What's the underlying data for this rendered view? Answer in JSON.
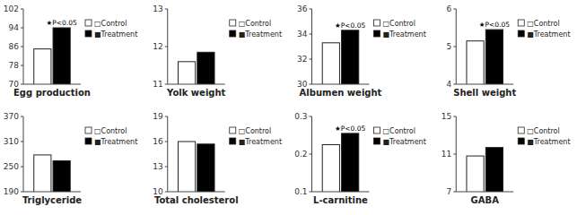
{
  "chart_data": [
    {
      "type": "bar",
      "x_label": "Egg production",
      "categories": [
        null
      ],
      "series": [
        {
          "name": "□Control",
          "color": "white",
          "values": [
            85
          ]
        },
        {
          "name": "■Treatment",
          "color": "black",
          "values": [
            94
          ],
          "annotation": "★P<0.05"
        }
      ],
      "ylim": [
        70,
        102
      ],
      "yticks": [
        70,
        78,
        86,
        94,
        102
      ],
      "grid": false,
      "legend": "right"
    },
    {
      "type": "bar",
      "x_label": "Yolk weight",
      "categories": [
        null
      ],
      "series": [
        {
          "name": "□Control",
          "color": "white",
          "values": [
            11.6
          ]
        },
        {
          "name": "■Treatment",
          "color": "black",
          "values": [
            11.85
          ]
        }
      ],
      "ylim": [
        11,
        13
      ],
      "yticks": [
        11,
        12,
        13
      ],
      "grid": false,
      "legend": "right"
    },
    {
      "type": "bar",
      "x_label": "Albumen weight",
      "categories": [
        null
      ],
      "series": [
        {
          "name": "□Control",
          "color": "white",
          "values": [
            33.3
          ]
        },
        {
          "name": "■Treatment",
          "color": "black",
          "values": [
            34.3
          ],
          "annotation": "★P<0.05"
        }
      ],
      "ylim": [
        30,
        36
      ],
      "yticks": [
        30,
        32,
        34,
        36
      ],
      "grid": false,
      "legend": "right"
    },
    {
      "type": "bar",
      "x_label": "Shell weight",
      "categories": [
        null
      ],
      "series": [
        {
          "name": "□Control",
          "color": "white",
          "values": [
            5.15
          ]
        },
        {
          "name": "■Treatment",
          "color": "black",
          "values": [
            5.45
          ],
          "annotation": "★P<0.05"
        }
      ],
      "ylim": [
        4,
        6
      ],
      "yticks": [
        4,
        5,
        6
      ],
      "grid": false,
      "legend": "right"
    },
    {
      "type": "bar",
      "x_label": "Triglyceride",
      "categories": [
        null
      ],
      "series": [
        {
          "name": "□Control",
          "color": "white",
          "values": [
            278
          ]
        },
        {
          "name": "■Treatment",
          "color": "black",
          "values": [
            264
          ]
        }
      ],
      "ylim": [
        190,
        370
      ],
      "yticks": [
        190,
        250,
        310,
        370
      ],
      "grid": false,
      "legend": "right"
    },
    {
      "type": "bar",
      "x_label": "Total cholesterol",
      "categories": [
        null
      ],
      "series": [
        {
          "name": "□Control",
          "color": "white",
          "values": [
            16.0
          ]
        },
        {
          "name": "■Treatment",
          "color": "black",
          "values": [
            15.7
          ]
        }
      ],
      "ylim": [
        10,
        19
      ],
      "yticks": [
        10,
        13,
        16,
        19
      ],
      "grid": false,
      "legend": "right"
    },
    {
      "type": "bar",
      "x_label": "L-carnitine",
      "categories": [
        null
      ],
      "series": [
        {
          "name": "□Control",
          "color": "white",
          "values": [
            0.225
          ]
        },
        {
          "name": "■Treatment",
          "color": "black",
          "values": [
            0.255
          ],
          "annotation": "★P<0.05"
        }
      ],
      "ylim": [
        0.1,
        0.3
      ],
      "yticks": [
        0.1,
        0.2,
        0.3
      ],
      "grid": false,
      "legend": "right"
    },
    {
      "type": "bar",
      "x_label": "GABA",
      "categories": [
        null
      ],
      "series": [
        {
          "name": "□Control",
          "color": "white",
          "values": [
            10.8
          ]
        },
        {
          "name": "■Treatment",
          "color": "black",
          "values": [
            11.7
          ]
        }
      ],
      "ylim": [
        7,
        15
      ],
      "yticks": [
        7,
        11,
        15
      ],
      "grid": false,
      "legend": "right"
    }
  ]
}
